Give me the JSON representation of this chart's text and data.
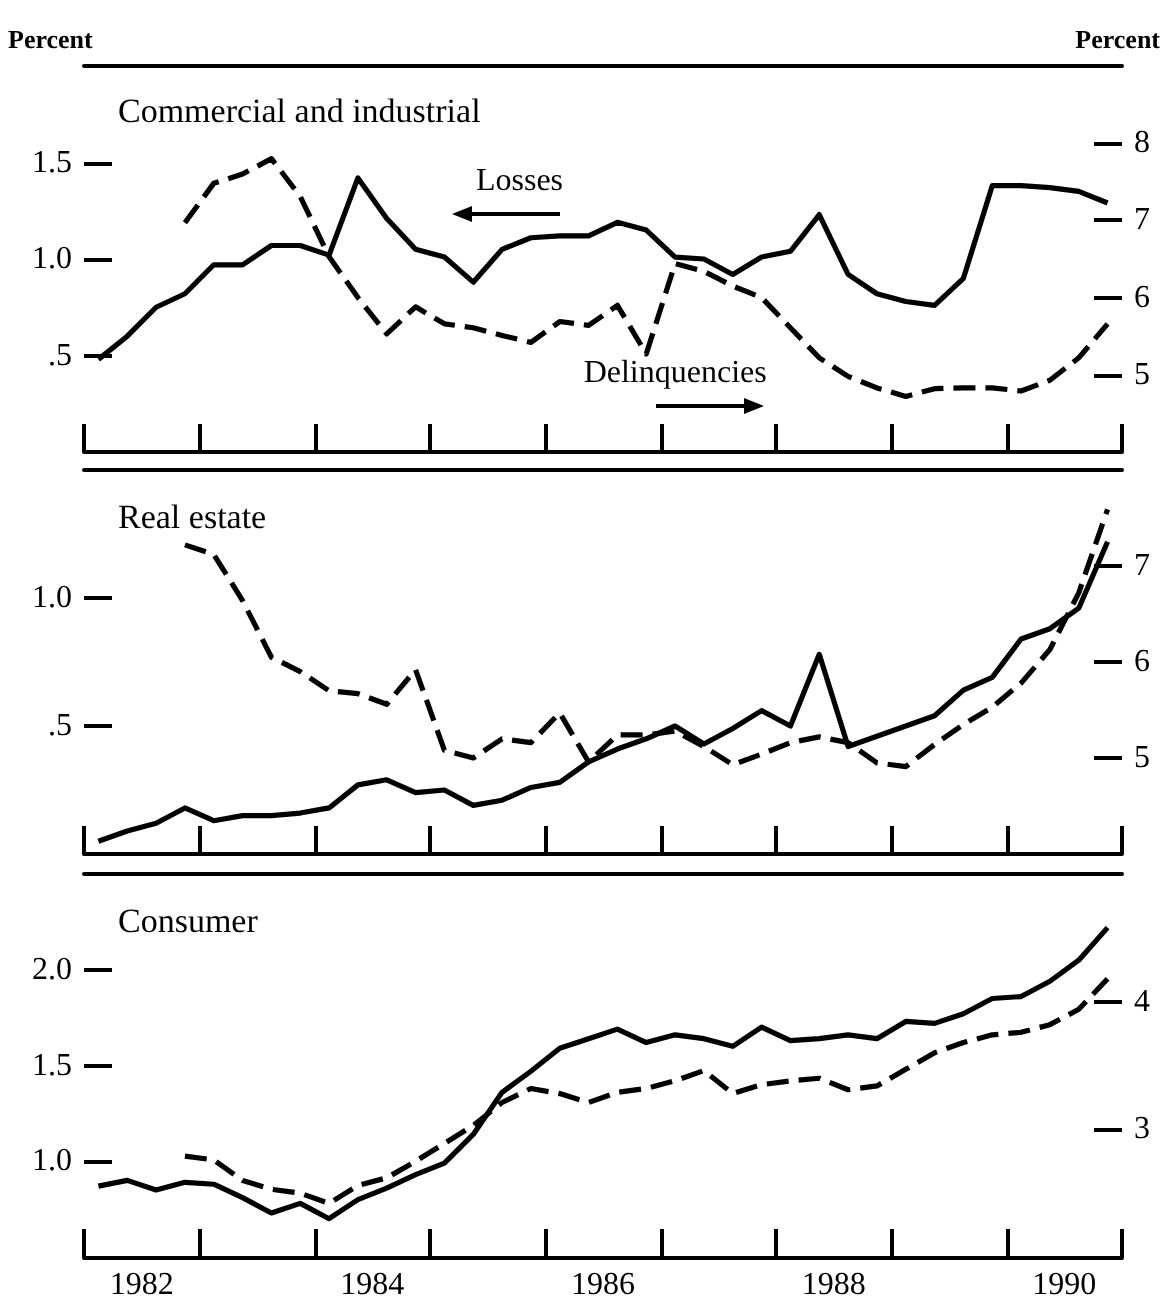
{
  "chart_data": [
    {
      "type": "line",
      "title": "Commercial and industrial",
      "ylabel": "Percent",
      "y2label": "Percent",
      "tick_labels": "y",
      "marker": "none",
      "x": [
        1982.125,
        1982.375,
        1982.625,
        1982.875,
        1983.125,
        1983.375,
        1983.625,
        1983.875,
        1984.125,
        1984.375,
        1984.625,
        1984.875,
        1985.125,
        1985.375,
        1985.625,
        1985.875,
        1986.125,
        1986.375,
        1986.625,
        1986.875,
        1987.125,
        1987.375,
        1987.625,
        1987.875,
        1988.125,
        1988.375,
        1988.625,
        1988.875,
        1989.125,
        1989.375,
        1989.625,
        1989.875,
        1990.125,
        1990.375,
        1990.625,
        1990.875
      ],
      "xlim": [
        1982,
        1991
      ],
      "xticks": [
        {
          "value": 1982,
          "label": null
        },
        {
          "value": 1983,
          "label": null
        },
        {
          "value": 1984,
          "label": null
        },
        {
          "value": 1985,
          "label": null
        },
        {
          "value": 1986,
          "label": null
        },
        {
          "value": 1987,
          "label": null
        },
        {
          "value": 1988,
          "label": null
        },
        {
          "value": 1989,
          "label": null
        },
        {
          "value": 1990,
          "label": null
        },
        {
          "value": 1991,
          "label": null
        }
      ],
      "ylim": [
        0,
        2
      ],
      "yticks": [
        {
          "value": 0.5,
          "label": ".5"
        },
        {
          "value": 1,
          "label": "1.0"
        },
        1.5
      ],
      "y2lim": [
        4,
        9
      ],
      "y2ticks": [
        5,
        6,
        7,
        8
      ],
      "series": [
        {
          "name": "Losses",
          "color": "#000000",
          "line_style": "solid",
          "values": [
            0.48,
            0.6,
            0.75,
            0.82,
            0.97,
            0.97,
            1.07,
            1.07,
            1.02,
            1.42,
            1.21,
            1.05,
            1.01,
            0.88,
            1.05,
            1.11,
            1.12,
            1.12,
            1.19,
            1.15,
            1.01,
            1.0,
            0.92,
            1.01,
            1.04,
            1.23,
            0.92,
            0.82,
            0.78,
            0.76,
            0.9,
            1.38,
            1.38,
            1.37,
            1.35,
            1.29
          ]
        },
        {
          "name": "Delinquencies",
          "color": "#000000",
          "line_style": "dashed",
          "axis": "y2",
          "values": [
            null,
            null,
            null,
            6.97,
            7.48,
            7.6,
            7.8,
            7.31,
            6.53,
            6.0,
            5.53,
            5.88,
            5.66,
            5.61,
            5.51,
            5.42,
            5.69,
            5.64,
            5.9,
            5.27,
            6.44,
            6.34,
            6.15,
            6.0,
            5.61,
            5.22,
            4.98,
            4.83,
            4.72,
            4.82,
            4.83,
            4.83,
            4.79,
            4.93,
            5.22,
            5.66
          ]
        }
      ]
    },
    {
      "type": "line",
      "title": "Real estate",
      "tick_labels": "y",
      "marker": "none",
      "x": [
        1982.125,
        1982.375,
        1982.625,
        1982.875,
        1983.125,
        1983.375,
        1983.625,
        1983.875,
        1984.125,
        1984.375,
        1984.625,
        1984.875,
        1985.125,
        1985.375,
        1985.625,
        1985.875,
        1986.125,
        1986.375,
        1986.625,
        1986.875,
        1987.125,
        1987.375,
        1987.625,
        1987.875,
        1988.125,
        1988.375,
        1988.625,
        1988.875,
        1989.125,
        1989.375,
        1989.625,
        1989.875,
        1990.125,
        1990.375,
        1990.625,
        1990.875
      ],
      "xlim": [
        1982,
        1991
      ],
      "xticks": [
        {
          "value": 1982,
          "label": null
        },
        {
          "value": 1983,
          "label": null
        },
        {
          "value": 1984,
          "label": null
        },
        {
          "value": 1985,
          "label": null
        },
        {
          "value": 1986,
          "label": null
        },
        {
          "value": 1987,
          "label": null
        },
        {
          "value": 1988,
          "label": null
        },
        {
          "value": 1989,
          "label": null
        },
        {
          "value": 1990,
          "label": null
        },
        {
          "value": 1991,
          "label": null
        }
      ],
      "ylim": [
        0,
        1.5
      ],
      "yticks": [
        {
          "value": 0.5,
          "label": ".5"
        },
        {
          "value": 1,
          "label": "1.0"
        }
      ],
      "y2lim": [
        4,
        8
      ],
      "y2ticks": [
        5,
        6,
        7
      ],
      "series": [
        {
          "color": "#000000",
          "line_style": "solid",
          "values": [
            0.05,
            0.09,
            0.12,
            0.18,
            0.13,
            0.15,
            0.15,
            0.16,
            0.18,
            0.27,
            0.29,
            0.24,
            0.25,
            0.19,
            0.21,
            0.26,
            0.28,
            0.36,
            0.41,
            0.45,
            0.5,
            0.43,
            0.49,
            0.56,
            0.5,
            0.78,
            0.42,
            0.46,
            0.5,
            0.54,
            0.64,
            0.69,
            0.84,
            0.88,
            0.96,
            1.22
          ]
        },
        {
          "color": "#000000",
          "line_style": "dashed",
          "axis": "y2",
          "values": [
            null,
            null,
            null,
            7.22,
            7.12,
            6.64,
            6.05,
            5.9,
            5.7,
            5.67,
            5.56,
            5.92,
            5.08,
            5.0,
            5.2,
            5.16,
            5.47,
            4.96,
            5.24,
            5.24,
            5.28,
            5.12,
            4.93,
            5.04,
            5.16,
            5.22,
            5.16,
            4.95,
            4.91,
            5.14,
            5.35,
            5.53,
            5.78,
            6.13,
            6.72,
            7.59
          ]
        }
      ]
    },
    {
      "type": "line",
      "title": "Consumer",
      "marker": "none",
      "x": [
        1982.125,
        1982.375,
        1982.625,
        1982.875,
        1983.125,
        1983.375,
        1983.625,
        1983.875,
        1984.125,
        1984.375,
        1984.625,
        1984.875,
        1985.125,
        1985.375,
        1985.625,
        1985.875,
        1986.125,
        1986.375,
        1986.625,
        1986.875,
        1987.125,
        1987.375,
        1987.625,
        1987.875,
        1988.125,
        1988.375,
        1988.625,
        1988.875,
        1989.125,
        1989.375,
        1989.625,
        1989.875,
        1990.125,
        1990.375,
        1990.625,
        1990.875
      ],
      "xlim": [
        1982,
        1991
      ],
      "xticks": [
        {
          "value": 1982,
          "label": null
        },
        {
          "value": 1982.5,
          "label": "1982"
        },
        {
          "value": 1983,
          "label": null
        },
        {
          "value": 1984,
          "label": null
        },
        {
          "value": 1984.5,
          "label": "1984"
        },
        {
          "value": 1985,
          "label": null
        },
        {
          "value": 1986,
          "label": null
        },
        {
          "value": 1986.5,
          "label": "1986"
        },
        {
          "value": 1987,
          "label": null
        },
        {
          "value": 1988,
          "label": null
        },
        {
          "value": 1988.5,
          "label": "1988"
        },
        {
          "value": 1989,
          "label": null
        },
        {
          "value": 1990,
          "label": null
        },
        {
          "value": 1990.5,
          "label": "1990"
        },
        {
          "value": 1991,
          "label": null
        }
      ],
      "ylim": [
        0.5,
        2.5
      ],
      "yticks": [
        {
          "value": 1,
          "label": "1.0"
        },
        1.5,
        {
          "value": 2,
          "label": "2.0"
        }
      ],
      "y2lim": [
        2,
        5
      ],
      "y2ticks": [
        3,
        4
      ],
      "series": [
        {
          "color": "#000000",
          "line_style": "solid",
          "values": [
            0.87,
            0.9,
            0.85,
            0.89,
            0.88,
            0.81,
            0.73,
            0.78,
            0.7,
            0.8,
            0.86,
            0.93,
            0.99,
            1.14,
            1.36,
            1.47,
            1.59,
            1.64,
            1.69,
            1.62,
            1.66,
            1.64,
            1.6,
            1.7,
            1.63,
            1.64,
            1.66,
            1.64,
            1.73,
            1.72,
            1.77,
            1.85,
            1.86,
            1.94,
            2.05,
            2.22
          ]
        },
        {
          "color": "#000000",
          "line_style": "dashed",
          "axis": "y2",
          "values": [
            null,
            null,
            null,
            2.79,
            2.76,
            2.6,
            2.53,
            2.5,
            2.42,
            2.56,
            2.62,
            2.75,
            2.89,
            3.03,
            3.21,
            3.32,
            3.28,
            3.21,
            3.29,
            3.32,
            3.38,
            3.46,
            3.28,
            3.35,
            3.38,
            3.4,
            3.31,
            3.34,
            3.47,
            3.6,
            3.68,
            3.74,
            3.76,
            3.82,
            3.94,
            4.18
          ]
        }
      ]
    }
  ]
}
